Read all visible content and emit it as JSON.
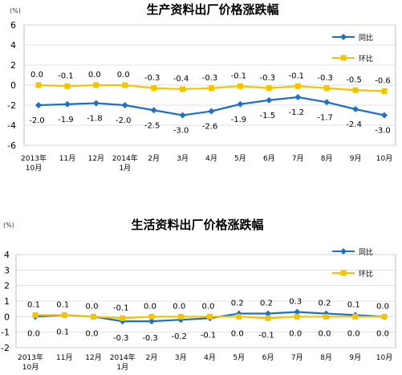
{
  "charts": [
    {
      "type": "line",
      "title": "生产资料出厂价格涨跌幅",
      "unit": "(%)",
      "categories": [
        [
          "2013年",
          "10月"
        ],
        [
          "11月"
        ],
        [
          "12月"
        ],
        [
          "2014年",
          "1月"
        ],
        [
          "2月"
        ],
        [
          "3月"
        ],
        [
          "4月"
        ],
        [
          "5月"
        ],
        [
          "6月"
        ],
        [
          "7月"
        ],
        [
          "8月"
        ],
        [
          "9月"
        ],
        [
          "10月"
        ]
      ],
      "ylim": [
        -6,
        6
      ],
      "yticks": [
        "6",
        "4",
        "2",
        "0",
        "-2",
        "-4",
        "-6"
      ],
      "grid": true,
      "legend": {
        "placement": "top-right",
        "items": [
          "同比",
          "环比"
        ]
      },
      "series": [
        {
          "name": "同比",
          "color": "#1f6fc5",
          "marker": "diamond",
          "values": [
            -2.0,
            -1.9,
            -1.8,
            -2.0,
            -2.5,
            -3.0,
            -2.6,
            -1.9,
            -1.5,
            -1.2,
            -1.7,
            -2.4,
            -3.0
          ],
          "labels": [
            "-2.0",
            "-1.9",
            "-1.8",
            "-2.0",
            "-2.5",
            "-3.0",
            "-2.6",
            "-1.9",
            "-1.5",
            "-1.2",
            "-1.7",
            "-2.4",
            "-3.0"
          ]
        },
        {
          "name": "环比",
          "color": "#f5c400",
          "marker": "square",
          "values": [
            0.0,
            -0.1,
            0.0,
            0.0,
            -0.3,
            -0.4,
            -0.3,
            -0.1,
            -0.3,
            -0.1,
            -0.3,
            -0.5,
            -0.6
          ],
          "labels": [
            "0.0",
            "-0.1",
            "0.0",
            "0.0",
            "-0.3",
            "-0.4",
            "-0.3",
            "-0.1",
            "-0.3",
            "-0.1",
            "-0.3",
            "-0.5",
            "-0.6"
          ]
        }
      ]
    },
    {
      "type": "line",
      "title": "生活资料出厂价格涨跌幅",
      "unit": "(%)",
      "categories": [
        [
          "2013年",
          "10月"
        ],
        [
          "11月"
        ],
        [
          "12月"
        ],
        [
          "2014年",
          "1月"
        ],
        [
          "2月"
        ],
        [
          "3月"
        ],
        [
          "4月"
        ],
        [
          "5月"
        ],
        [
          "6月"
        ],
        [
          "7月"
        ],
        [
          "8月"
        ],
        [
          "9月"
        ],
        [
          "10月"
        ]
      ],
      "ylim": [
        -2,
        4
      ],
      "yticks": [
        "4",
        "3",
        "2",
        "1",
        "0",
        "-1",
        "-2"
      ],
      "grid": true,
      "legend": {
        "placement": "top-right",
        "items": [
          "同比",
          "环比"
        ]
      },
      "series": [
        {
          "name": "同比",
          "color": "#1f6fc5",
          "marker": "diamond",
          "values": [
            0.0,
            0.1,
            0.0,
            -0.3,
            -0.3,
            -0.2,
            -0.1,
            0.2,
            0.2,
            0.3,
            0.2,
            0.1,
            0.0
          ],
          "labels": [
            "0.0",
            "0.1",
            "0.0",
            "-0.3",
            "-0.3",
            "-0.2",
            "-0.1",
            "0.2",
            "0.2",
            "0.3",
            "0.2",
            "0.1",
            "0.0"
          ]
        },
        {
          "name": "环比",
          "color": "#f5c400",
          "marker": "square",
          "values": [
            0.1,
            0.1,
            0.0,
            -0.1,
            0.0,
            0.0,
            0.0,
            0.0,
            -0.1,
            0.0,
            0.0,
            0.0,
            0.0
          ],
          "labels": [
            "0.1",
            "0.1",
            "0.0",
            "-0.1",
            "0.0",
            "0.0",
            "0.0",
            "0.0",
            "-0.1",
            "0.0",
            "0.0",
            "0.0",
            "0.0"
          ]
        }
      ]
    }
  ]
}
